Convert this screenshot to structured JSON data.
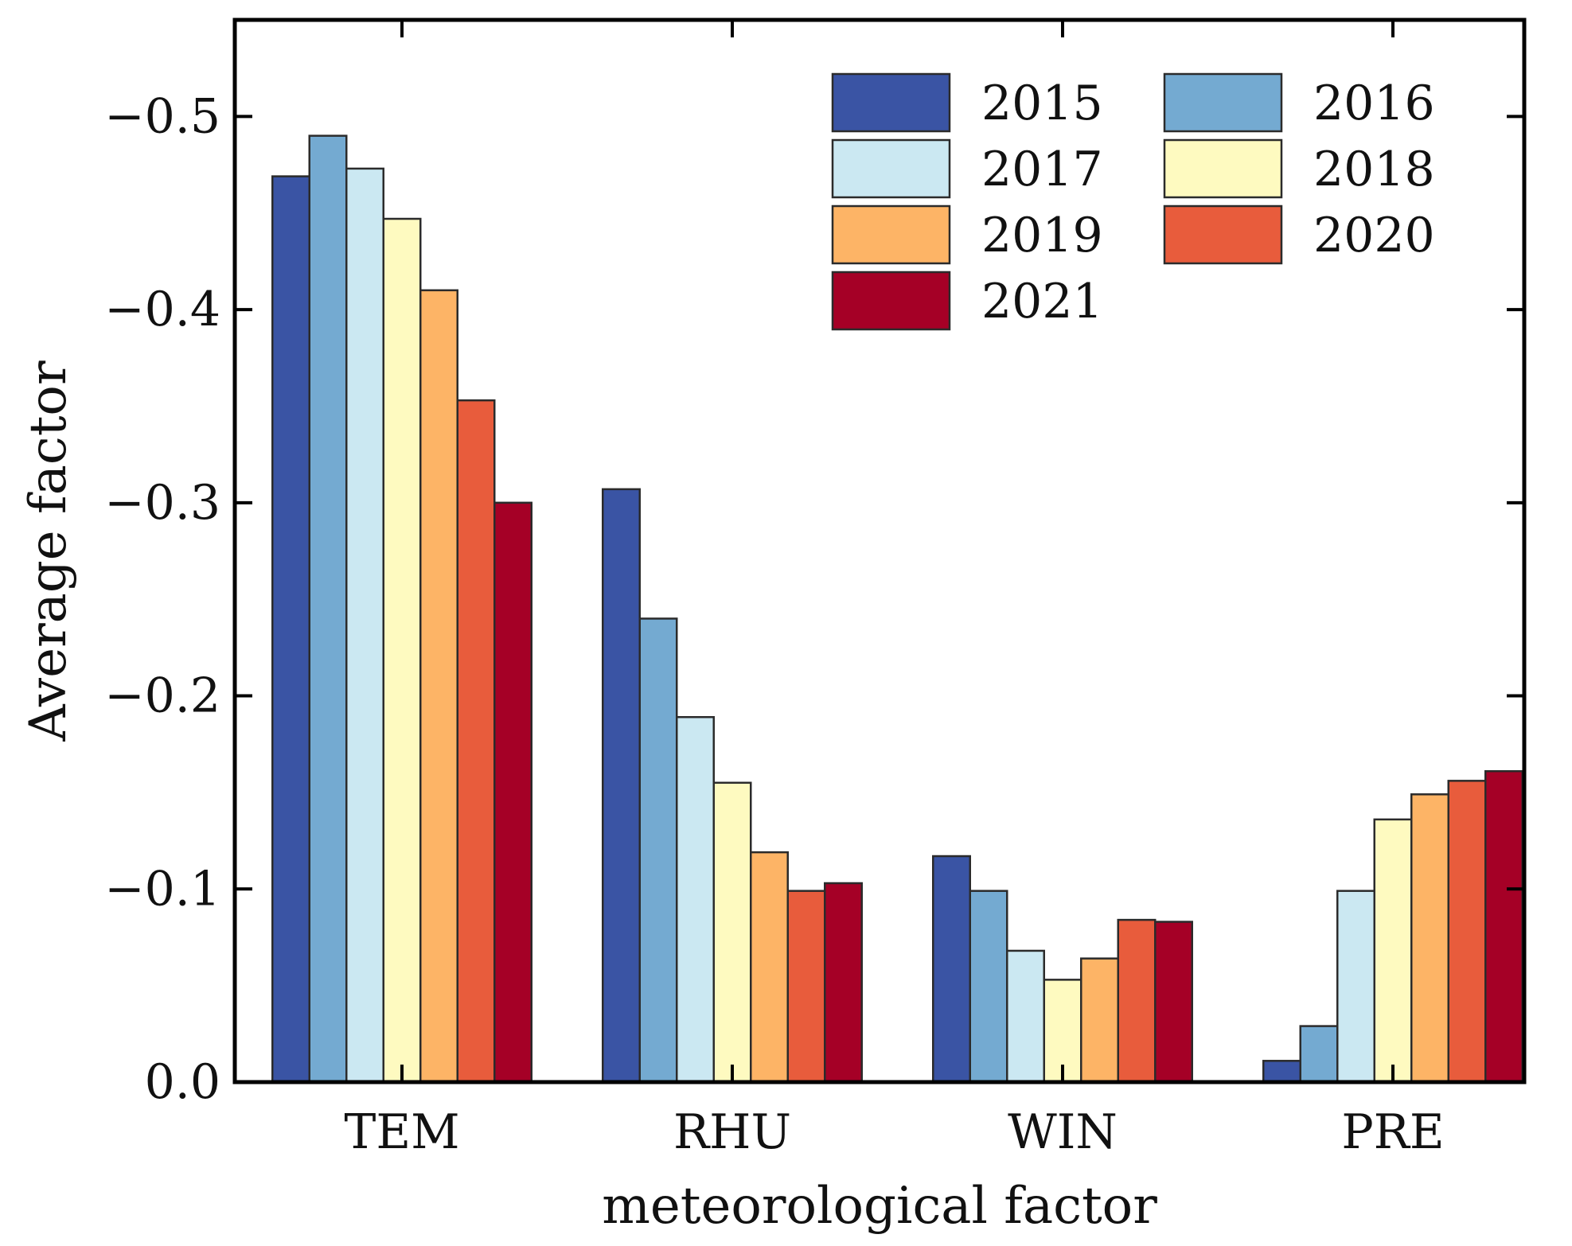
{
  "chart_data": {
    "type": "bar",
    "title": "",
    "xlabel": "meteorological factor",
    "ylabel": "Average factor",
    "categories": [
      "TEM",
      "RHU",
      "WIN",
      "PRE"
    ],
    "ylim": [
      0,
      -0.55
    ],
    "yticks": [
      0.0,
      -0.1,
      -0.2,
      -0.3,
      -0.4,
      -0.5
    ],
    "ytick_labels": [
      "0.0",
      "−0.1",
      "−0.2",
      "−0.3",
      "−0.4",
      "−0.5"
    ],
    "y_inverted": true,
    "grid": false,
    "legend": {
      "position": "top-right",
      "columns": 2
    },
    "series": [
      {
        "name": "2015",
        "color": "#3a54a4",
        "values": [
          -0.469,
          -0.307,
          -0.117,
          -0.011
        ]
      },
      {
        "name": "2016",
        "color": "#74aad1",
        "values": [
          -0.49,
          -0.24,
          -0.099,
          -0.029
        ]
      },
      {
        "name": "2017",
        "color": "#cbe8f2",
        "values": [
          -0.473,
          -0.189,
          -0.068,
          -0.099
        ]
      },
      {
        "name": "2018",
        "color": "#fefac0",
        "values": [
          -0.447,
          -0.155,
          -0.053,
          -0.136
        ]
      },
      {
        "name": "2019",
        "color": "#fdb466",
        "values": [
          -0.41,
          -0.119,
          -0.064,
          -0.149
        ]
      },
      {
        "name": "2020",
        "color": "#e85c3c",
        "values": [
          -0.353,
          -0.099,
          -0.084,
          -0.156
        ]
      },
      {
        "name": "2021",
        "color": "#a50026",
        "values": [
          -0.3,
          -0.103,
          -0.083,
          -0.161
        ]
      }
    ]
  }
}
